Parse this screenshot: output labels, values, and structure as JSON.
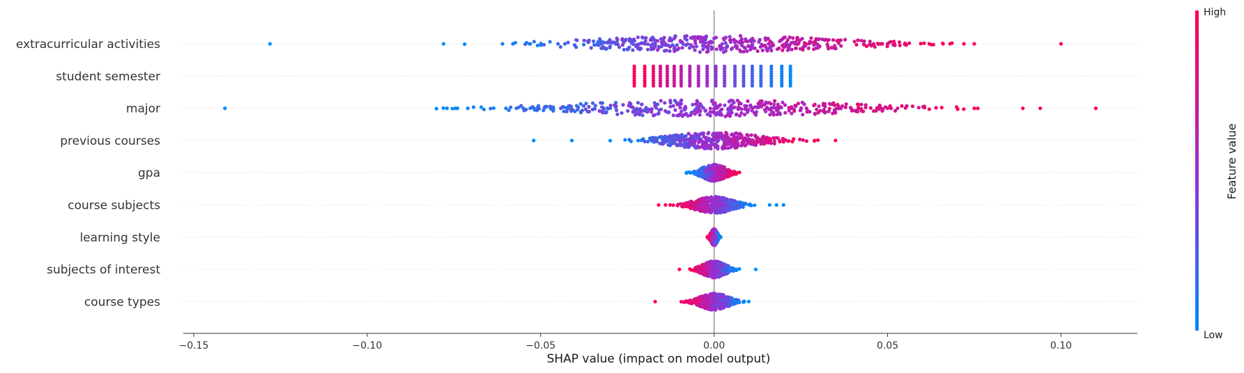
{
  "chart_data": {
    "type": "scatter",
    "subtype": "shap-beeswarm",
    "features": [
      "extracurricular activities",
      "student semester",
      "major",
      "previous courses",
      "gpa",
      "course subjects",
      "learning style",
      "subjects of interest",
      "course types"
    ],
    "xlabel": "SHAP value (impact on model output)",
    "xlim": [
      -0.153,
      0.122
    ],
    "xticks": [
      -0.15,
      -0.1,
      -0.05,
      0.0,
      0.05,
      0.1
    ],
    "xtick_labels": [
      "−0.15",
      "−0.10",
      "−0.05",
      "0.00",
      "0.05",
      "0.10"
    ],
    "grid": "dotted horizontal row lines",
    "colorbar": {
      "label": "Feature value",
      "high_label": "High",
      "low_label": "Low",
      "low_color": "#008bfb",
      "mid_color": "#9d2ccf",
      "high_color": "#ff0052"
    },
    "series": [
      {
        "feature": "extracurricular activities",
        "range": [
          -0.128,
          0.1
        ],
        "color_trend": "low values negative, high values positive",
        "outliers": [
          -0.128,
          -0.078,
          -0.061,
          -0.058,
          -0.053,
          -0.045,
          -0.043,
          0.046,
          0.048,
          0.05,
          0.052,
          0.055,
          0.062,
          0.066,
          0.068,
          0.072,
          0.075,
          0.1
        ]
      },
      {
        "feature": "student semester",
        "range": [
          -0.023,
          0.022
        ],
        "levels": [
          -0.023,
          -0.02,
          -0.0175,
          -0.0155,
          -0.0135,
          -0.0115,
          -0.0095,
          -0.007,
          -0.0045,
          -0.002,
          0.0005,
          0.003,
          0.006,
          0.0085,
          0.011,
          0.0135,
          0.0165,
          0.0195,
          0.022
        ],
        "color_trend": "high values negative, low values positive"
      },
      {
        "feature": "major",
        "range": [
          -0.141,
          0.11
        ],
        "color_trend": "low values negative, high values positive",
        "outliers": [
          -0.141,
          -0.077,
          -0.074,
          -0.071,
          -0.06,
          -0.057,
          -0.055,
          -0.053,
          -0.051,
          0.047,
          0.05,
          0.051,
          0.075,
          0.076,
          0.089,
          0.094,
          0.11
        ]
      },
      {
        "feature": "previous courses",
        "range": [
          -0.052,
          0.035
        ],
        "color_trend": "low values negative, high values positive",
        "outliers": [
          -0.052,
          -0.041,
          0.029,
          0.035
        ]
      },
      {
        "feature": "gpa",
        "range": [
          -0.011,
          0.012
        ],
        "color_trend": "low values negative, high values positive"
      },
      {
        "feature": "course subjects",
        "range": [
          -0.016,
          0.02
        ],
        "color_trend": "high values negative, low values positive",
        "outliers": [
          -0.016,
          -0.014,
          0.016,
          0.018,
          0.02
        ]
      },
      {
        "feature": "learning style",
        "range": [
          -0.003,
          0.003
        ],
        "color_trend": "high values negative, low values positive"
      },
      {
        "feature": "subjects of interest",
        "range": [
          -0.01,
          0.012
        ],
        "color_trend": "high values negative, low values positive",
        "outliers": [
          -0.01,
          0.012
        ]
      },
      {
        "feature": "course types",
        "range": [
          -0.017,
          0.01
        ],
        "color_trend": "high values negative, low values positive",
        "outliers": [
          -0.017,
          -0.008,
          0.01
        ]
      }
    ]
  }
}
